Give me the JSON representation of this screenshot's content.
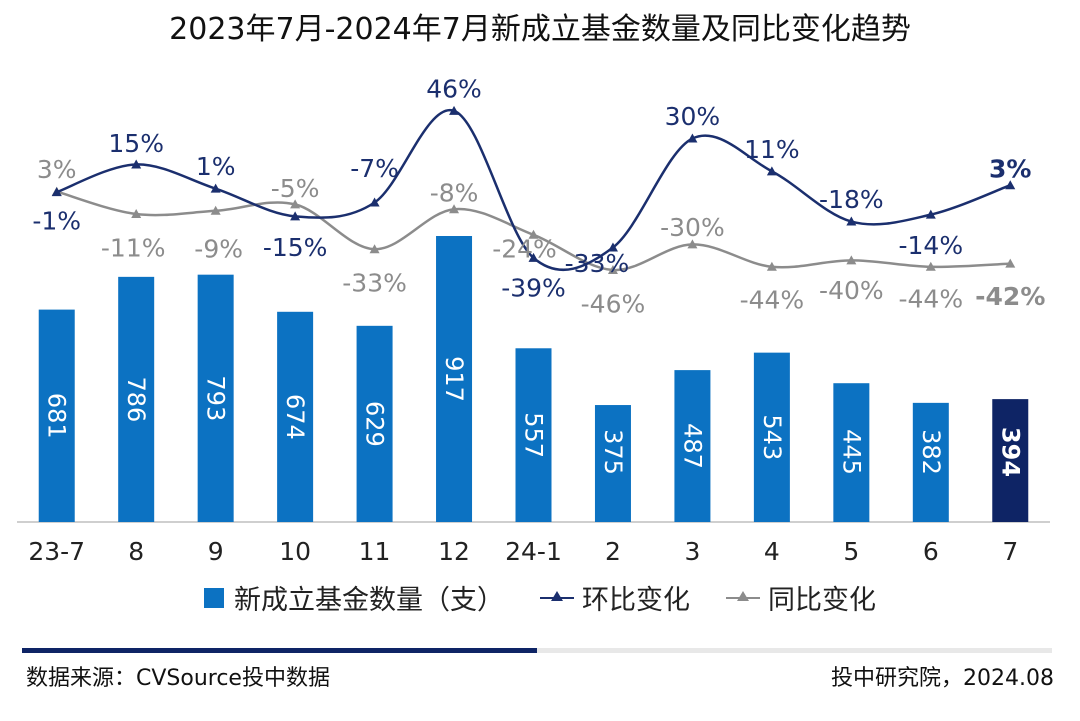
{
  "chart_data": {
    "type": "bar",
    "title": "2023年7月-2024年7月新成立基金数量及同比变化趋势",
    "categories": [
      "23-7",
      "8",
      "9",
      "10",
      "11",
      "12",
      "24-1",
      "2",
      "3",
      "4",
      "5",
      "6",
      "7"
    ],
    "series": [
      {
        "name": "新成立基金数量（支）",
        "type": "bar",
        "values": [
          681,
          786,
          793,
          674,
          629,
          917,
          557,
          375,
          487,
          543,
          445,
          382,
          394
        ],
        "labels": [
          "681",
          "786",
          "793",
          "674",
          "629",
          "917",
          "557",
          "375",
          "487",
          "543",
          "445",
          "382",
          "394"
        ]
      },
      {
        "name": "环比变化",
        "type": "line",
        "values": [
          -1,
          15,
          1,
          -15,
          -7,
          46,
          -39,
          -33,
          30,
          11,
          -18,
          -14,
          3
        ],
        "labels": [
          "-1%",
          "15%",
          "1%",
          "-15%",
          "-7%",
          "46%",
          "-39%",
          "-33%",
          "30%",
          "11%",
          "-18%",
          "-14%",
          "3%"
        ]
      },
      {
        "name": "同比变化",
        "type": "line",
        "values": [
          3,
          -11,
          -9,
          -5,
          -33,
          -8,
          -24,
          -46,
          -30,
          -44,
          -40,
          -44,
          -42
        ],
        "labels": [
          "3%",
          "-11%",
          "-9%",
          "-5%",
          "-33%",
          "-8%",
          "-24%",
          "-46%",
          "-30%",
          "-44%",
          "-40%",
          "-44%",
          "-42%"
        ]
      }
    ],
    "colors": {
      "bar": "#0c72c2",
      "bar_highlight": "#0e2465",
      "mom": "#1b2f6e",
      "yoy": "#8c8c8c"
    }
  },
  "footer": {
    "source": "数据来源：CVSource投中数据",
    "credit": "投中研究院，2024.08"
  }
}
